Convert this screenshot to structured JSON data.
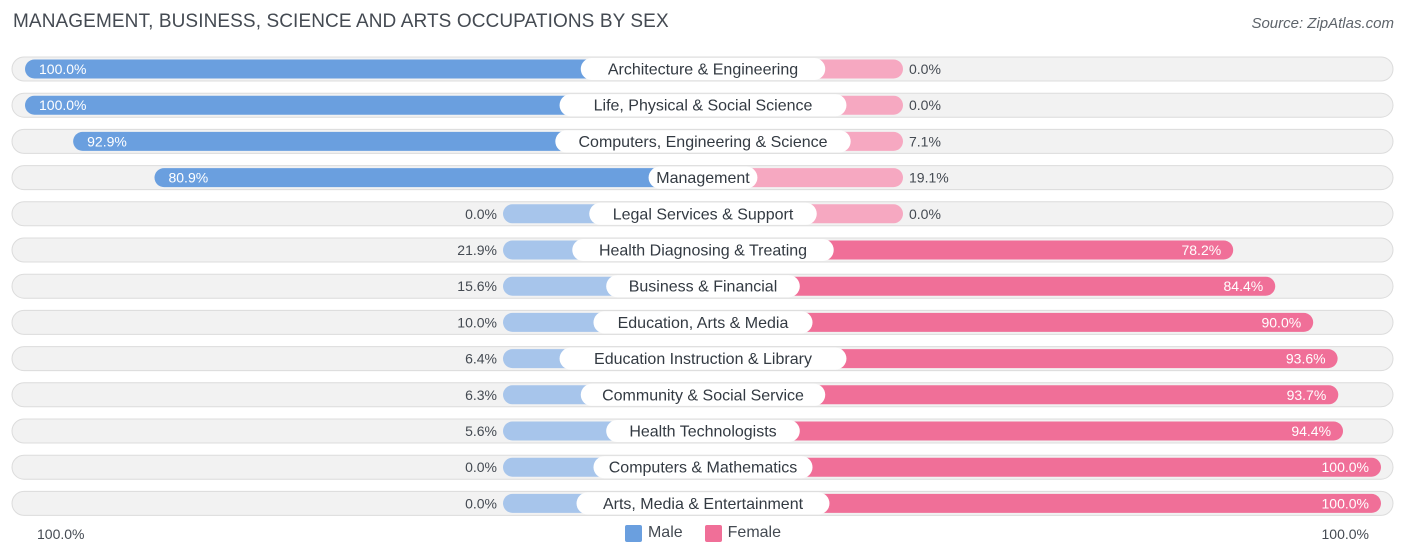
{
  "title": "MANAGEMENT, BUSINESS, SCIENCE AND ARTS OCCUPATIONS BY SEX",
  "source": "Source: ZipAtlas.com",
  "axis": {
    "left_label": "100.0%",
    "right_label": "100.0%"
  },
  "legend": {
    "male_label": "Male",
    "female_label": "Female"
  },
  "colors": {
    "male": "#6a9fdf",
    "male_light": "#a7c5eb",
    "female": "#f06f98",
    "female_light": "#f6a8c1",
    "row_bg": "#f2f2f2",
    "row_border": "#dcdcdc"
  },
  "chart_data": {
    "type": "bar",
    "title": "MANAGEMENT, BUSINESS, SCIENCE AND ARTS OCCUPATIONS BY SEX",
    "categories": [
      "Architecture & Engineering",
      "Life, Physical & Social Science",
      "Computers, Engineering & Science",
      "Management",
      "Legal Services & Support",
      "Health Diagnosing & Treating",
      "Business & Financial",
      "Education, Arts & Media",
      "Education Instruction & Library",
      "Community & Social Service",
      "Health Technologists",
      "Computers & Mathematics",
      "Arts, Media & Entertainment"
    ],
    "series": [
      {
        "name": "Male",
        "values": [
          100.0,
          100.0,
          92.9,
          80.9,
          0.0,
          21.9,
          15.6,
          10.0,
          6.4,
          6.3,
          5.6,
          0.0,
          0.0
        ],
        "labels": [
          "100.0%",
          "100.0%",
          "92.9%",
          "80.9%",
          "0.0%",
          "21.9%",
          "15.6%",
          "10.0%",
          "6.4%",
          "6.3%",
          "5.6%",
          "0.0%",
          "0.0%"
        ]
      },
      {
        "name": "Female",
        "values": [
          0.0,
          0.0,
          7.1,
          19.1,
          0.0,
          78.2,
          84.4,
          90.0,
          93.6,
          93.7,
          94.4,
          100.0,
          100.0
        ],
        "labels": [
          "0.0%",
          "0.0%",
          "7.1%",
          "19.1%",
          "0.0%",
          "78.2%",
          "84.4%",
          "90.0%",
          "93.6%",
          "93.7%",
          "94.4%",
          "100.0%",
          "100.0%"
        ]
      }
    ],
    "xlim": [
      0,
      100
    ],
    "legend_position": "bottom-center"
  }
}
